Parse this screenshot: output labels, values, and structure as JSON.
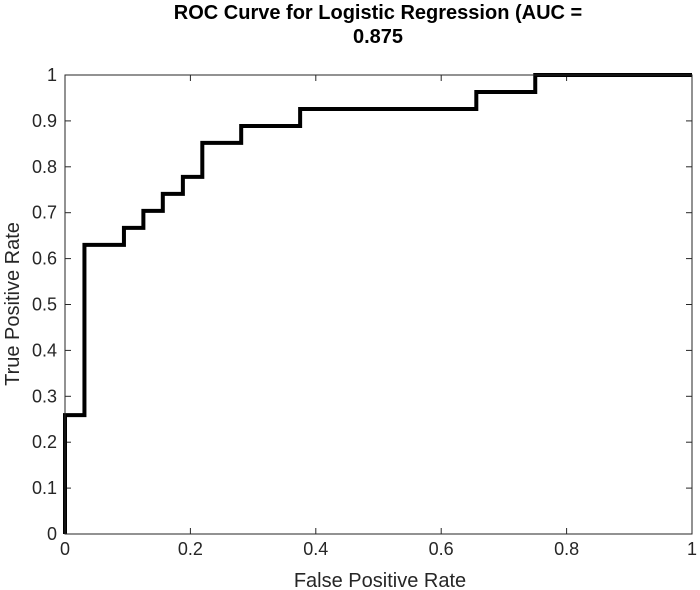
{
  "chart_data": {
    "type": "line",
    "title_lines": [
      "ROC Curve for Logistic Regression (AUC =",
      "0.875"
    ],
    "xlabel": "False Positive Rate",
    "ylabel": "True Positive Rate",
    "xlim": [
      0,
      1
    ],
    "ylim": [
      0,
      1
    ],
    "x_ticks": [
      0,
      0.2,
      0.4,
      0.6,
      0.8,
      1
    ],
    "x_tick_labels": [
      "0",
      "0.2",
      "0.4",
      "0.6",
      "0.8",
      "1"
    ],
    "y_ticks": [
      0,
      0.1,
      0.2,
      0.3,
      0.4,
      0.5,
      0.6,
      0.7,
      0.8,
      0.9,
      1
    ],
    "y_tick_labels": [
      "0",
      "0.1",
      "0.2",
      "0.3",
      "0.4",
      "0.5",
      "0.6",
      "0.7",
      "0.8",
      "0.9",
      "1"
    ],
    "grid": false,
    "legend": false,
    "series": [
      {
        "color": "#000000",
        "x": [
          0,
          0,
          0.031,
          0.031,
          0.094,
          0.094,
          0.125,
          0.125,
          0.156,
          0.156,
          0.188,
          0.188,
          0.219,
          0.219,
          0.281,
          0.281,
          0.375,
          0.375,
          0.656,
          0.656,
          0.75,
          0.75,
          1
        ],
        "y": [
          0,
          0.259,
          0.259,
          0.63,
          0.63,
          0.667,
          0.667,
          0.704,
          0.704,
          0.741,
          0.741,
          0.778,
          0.778,
          0.852,
          0.852,
          0.889,
          0.889,
          0.926,
          0.926,
          0.963,
          0.963,
          1,
          1
        ]
      }
    ]
  }
}
